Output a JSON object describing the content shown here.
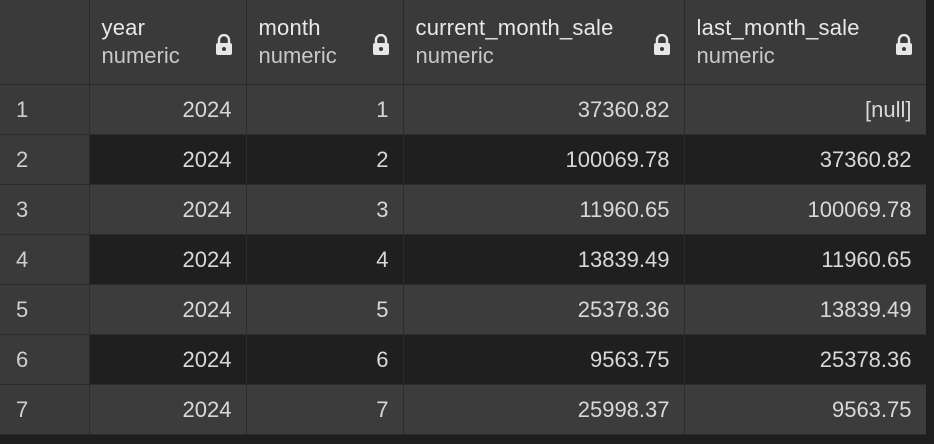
{
  "columns": [
    {
      "name": "year",
      "type": "numeric"
    },
    {
      "name": "month",
      "type": "numeric"
    },
    {
      "name": "current_month_sale",
      "type": "numeric"
    },
    {
      "name": "last_month_sale",
      "type": "numeric"
    }
  ],
  "rows": [
    {
      "index": "1",
      "year": "2024",
      "month": "1",
      "current_month_sale": "37360.82",
      "last_month_sale": "[null]"
    },
    {
      "index": "2",
      "year": "2024",
      "month": "2",
      "current_month_sale": "100069.78",
      "last_month_sale": "37360.82"
    },
    {
      "index": "3",
      "year": "2024",
      "month": "3",
      "current_month_sale": "11960.65",
      "last_month_sale": "100069.78"
    },
    {
      "index": "4",
      "year": "2024",
      "month": "4",
      "current_month_sale": "13839.49",
      "last_month_sale": "11960.65"
    },
    {
      "index": "5",
      "year": "2024",
      "month": "5",
      "current_month_sale": "25378.36",
      "last_month_sale": "13839.49"
    },
    {
      "index": "6",
      "year": "2024",
      "month": "6",
      "current_month_sale": "9563.75",
      "last_month_sale": "25378.36"
    },
    {
      "index": "7",
      "year": "2024",
      "month": "7",
      "current_month_sale": "25998.37",
      "last_month_sale": "9563.75"
    }
  ],
  "icons": {
    "column_lock": "lock-icon"
  },
  "colors": {
    "header_bg": "#3a3a3a",
    "row_odd_bg": "#3c3c3c",
    "row_even_bg": "#1f1f1f",
    "text": "#d8d8d8"
  }
}
